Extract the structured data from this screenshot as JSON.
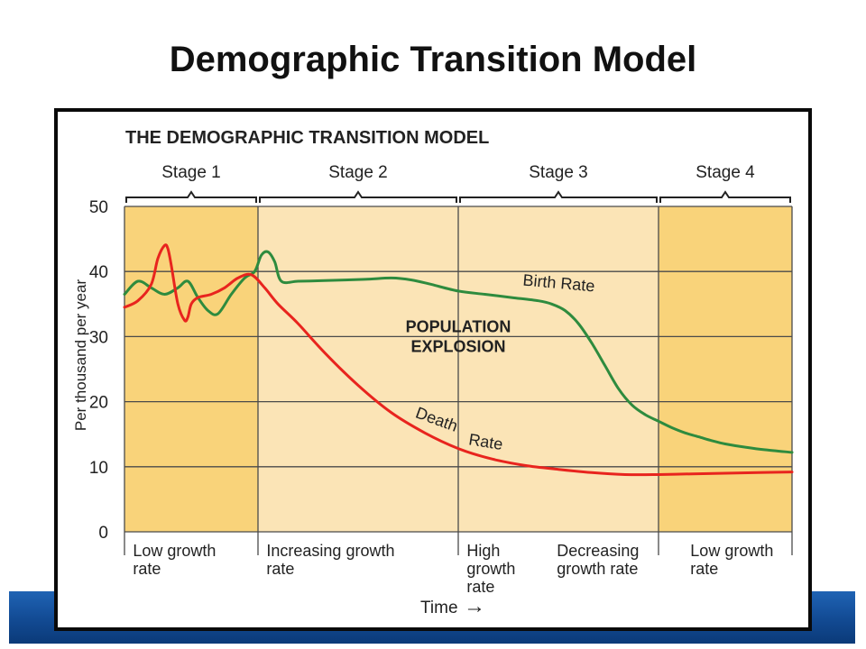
{
  "slide": {
    "title": "Demographic Transition Model"
  },
  "colors": {
    "stage_dark": "#f9d37a",
    "stage_light": "#fbe4b6",
    "birth_line": "#2e8b3e",
    "death_line": "#e8241e",
    "footer_bar": "#1a5aa8"
  },
  "chart_data": {
    "type": "line",
    "title": "THE DEMOGRAPHIC TRANSITION MODEL",
    "ylabel": "Per thousand per year",
    "xlabel": "Time",
    "x_axis_arrow": "→",
    "ylim": [
      0,
      50
    ],
    "yticks": [
      "0",
      "10",
      "20",
      "30",
      "40",
      "50"
    ],
    "grid": true,
    "xlim": [
      0,
      100
    ],
    "stages": [
      {
        "label": "Stage 1",
        "start": 0,
        "end": 20,
        "shade": "dark",
        "notes": [
          {
            "lines": [
              "Low growth",
              "rate"
            ],
            "at": 1
          }
        ]
      },
      {
        "label": "Stage 2",
        "start": 20,
        "end": 50,
        "shade": "light",
        "notes": [
          {
            "lines": [
              "Increasing growth",
              "rate"
            ],
            "at": 21
          }
        ]
      },
      {
        "label": "Stage 3",
        "start": 50,
        "end": 80,
        "shade": "light",
        "notes": [
          {
            "lines": [
              "High",
              "growth",
              "rate"
            ],
            "at": 51
          },
          {
            "lines": [
              "Decreasing",
              "growth rate"
            ],
            "at": 64.5
          }
        ]
      },
      {
        "label": "Stage 4",
        "start": 80,
        "end": 100,
        "shade": "dark",
        "notes": [
          {
            "lines": [
              "Low growth",
              "rate"
            ],
            "at": 84.5
          }
        ]
      }
    ],
    "series": [
      {
        "name": "Birth Rate",
        "color": "#2e8b3e",
        "x": [
          0,
          2,
          4,
          6,
          8,
          9.5,
          11,
          12.5,
          14,
          16,
          18,
          19.5,
          20.5,
          21.5,
          22.5,
          23.5,
          26,
          30,
          36,
          40,
          43,
          46,
          50,
          54,
          58,
          62,
          64,
          66,
          68,
          70,
          72,
          74,
          76,
          78,
          80,
          82,
          84,
          86,
          88,
          90,
          93,
          96,
          100
        ],
        "y": [
          36.5,
          38.5,
          37.5,
          36.5,
          37.5,
          38.5,
          36,
          34,
          33.5,
          36.5,
          39,
          40,
          42.5,
          43,
          41.5,
          38.5,
          38.5,
          38.6,
          38.8,
          39,
          38.7,
          38,
          37,
          36.5,
          36,
          35.5,
          35,
          34,
          32,
          29,
          25.5,
          22,
          19.5,
          18,
          17,
          16,
          15.2,
          14.6,
          14,
          13.5,
          13,
          12.6,
          12.2
        ]
      },
      {
        "name": "Death Rate",
        "color": "#e8241e",
        "x": [
          0,
          2,
          4,
          5,
          6,
          6.5,
          7,
          8,
          9,
          9.5,
          10,
          11,
          13,
          15,
          17,
          19,
          21,
          23,
          26,
          30,
          35,
          40,
          45,
          50,
          55,
          60,
          65,
          70,
          75,
          80,
          85,
          90,
          95,
          100
        ],
        "y": [
          34.5,
          35.5,
          38,
          42,
          44,
          43.5,
          41,
          35,
          32.5,
          33,
          35,
          36,
          36.5,
          37.5,
          39,
          39.5,
          37.5,
          35,
          32,
          27.5,
          22.5,
          18.3,
          15.2,
          12.8,
          11.2,
          10.2,
          9.6,
          9.1,
          8.8,
          8.8,
          8.9,
          9,
          9.1,
          9.2
        ]
      }
    ],
    "annotations": [
      {
        "id": "population_explosion",
        "lines": [
          "POPULATION",
          "EXPLOSION"
        ],
        "x": 50,
        "y": [
          30.7,
          27.6
        ]
      },
      {
        "id": "birth_rate_label",
        "text": "Birth Rate",
        "x": 65,
        "y": 37.4,
        "angle": 5
      },
      {
        "id": "death_rate_label_1",
        "text": "Death",
        "x": 46.5,
        "y": 16.5,
        "angle": 20
      },
      {
        "id": "death_rate_label_2",
        "text": "Rate",
        "x": 54,
        "y": 13,
        "angle": 9
      }
    ]
  }
}
